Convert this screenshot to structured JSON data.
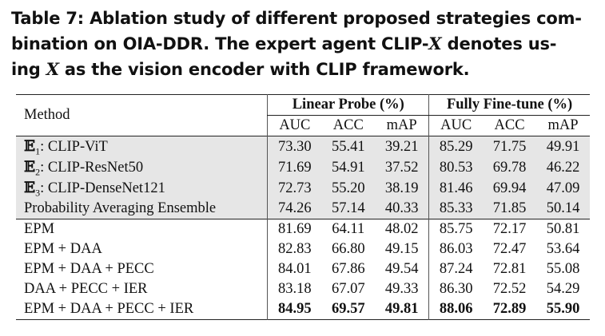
{
  "caption": {
    "prefix": "Table 7: Ablation study of different proposed strategies com-",
    "line2_a": "bination on OIA-DDR. The expert agent CLIP-",
    "line2_x": "X",
    "line2_b": " denotes us-",
    "line3_a": "ing ",
    "line3_x": "X",
    "line3_b": " as the vision encoder with CLIP framework."
  },
  "table": {
    "method_header": "Method",
    "group_linear": "Linear Probe (%)",
    "group_fine": "Fully Fine-tune (%)",
    "metrics": [
      "AUC",
      "ACC",
      "mAP",
      "AUC",
      "ACC",
      "mAP"
    ],
    "expert_rows": [
      {
        "sym": "𝔼",
        "sub": "1",
        "name": ": CLIP-ViT",
        "values": [
          "73.30",
          "55.41",
          "39.21",
          "85.29",
          "71.75",
          "49.91"
        ]
      },
      {
        "sym": "𝔼",
        "sub": "2",
        "name": ": CLIP-ResNet50",
        "values": [
          "71.69",
          "54.91",
          "37.52",
          "80.53",
          "69.78",
          "46.22"
        ]
      },
      {
        "sym": "𝔼",
        "sub": "3",
        "name": ": CLIP-DenseNet121",
        "values": [
          "72.73",
          "55.20",
          "38.19",
          "81.46",
          "69.94",
          "47.09"
        ]
      },
      {
        "sym": "",
        "sub": "",
        "name": "Probability Averaging Ensemble",
        "values": [
          "74.26",
          "57.14",
          "40.33",
          "85.33",
          "71.85",
          "50.14"
        ]
      }
    ],
    "ablation_rows": [
      {
        "name": "EPM",
        "values": [
          "81.69",
          "64.11",
          "48.02",
          "85.75",
          "72.17",
          "50.81"
        ]
      },
      {
        "name": "EPM + DAA",
        "values": [
          "82.83",
          "66.80",
          "49.15",
          "86.03",
          "72.47",
          "53.64"
        ]
      },
      {
        "name": "EPM + DAA + PECC",
        "values": [
          "84.01",
          "67.86",
          "49.54",
          "87.24",
          "72.81",
          "55.08"
        ]
      },
      {
        "name": "DAA + PECC + IER",
        "values": [
          "83.18",
          "67.07",
          "49.33",
          "86.30",
          "72.52",
          "54.29"
        ]
      },
      {
        "name": "EPM + DAA + PECC + IER",
        "values": [
          "84.95",
          "69.57",
          "49.81",
          "88.06",
          "72.89",
          "55.90"
        ],
        "bold": true
      }
    ]
  }
}
